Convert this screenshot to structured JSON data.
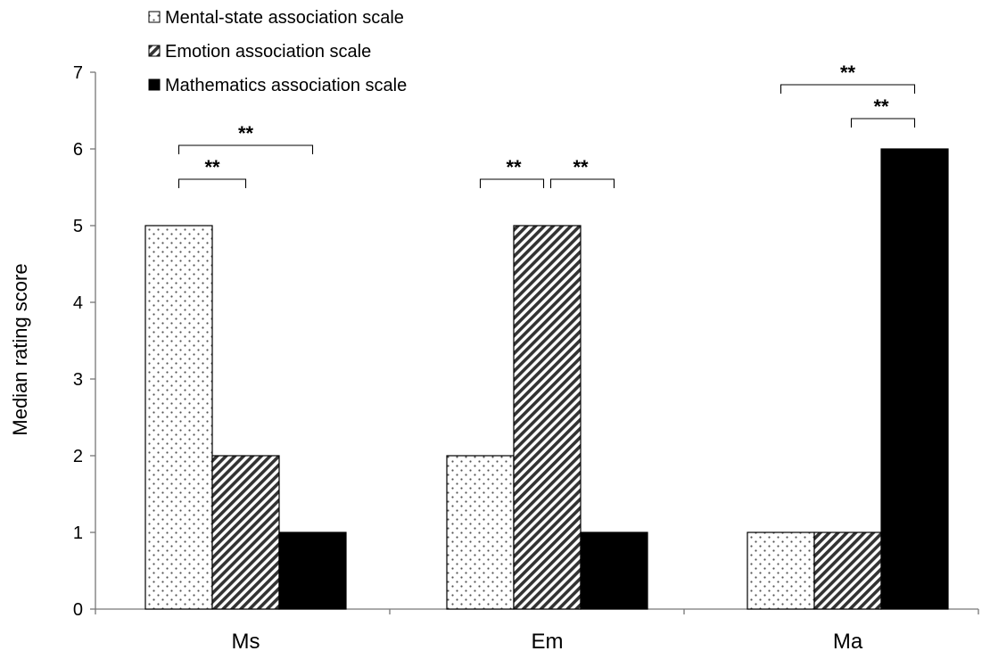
{
  "chart_data": {
    "type": "bar",
    "categories": [
      "Ms",
      "Em",
      "Ma"
    ],
    "series": [
      {
        "name": "Mental-state association scale",
        "values": [
          5,
          2,
          1
        ],
        "pattern": "dots"
      },
      {
        "name": "Emotion association scale",
        "values": [
          2,
          5,
          1
        ],
        "pattern": "diagonal-stripes"
      },
      {
        "name": "Mathematics association scale",
        "values": [
          1,
          1,
          6
        ],
        "pattern": "solid-black"
      }
    ],
    "ylabel": "Median rating score",
    "xlabel": "",
    "ylim": [
      0,
      7
    ],
    "yticks": [
      0,
      1,
      2,
      3,
      4,
      5,
      6,
      7
    ],
    "grid": false,
    "legend_position": "top-left",
    "significance": [
      {
        "category": 0,
        "from_series": 0,
        "to_series": 1,
        "label": "**"
      },
      {
        "category": 0,
        "from_series": 0,
        "to_series": 2,
        "label": "**"
      },
      {
        "category": 1,
        "from_series": 0,
        "to_series": 1,
        "label": "**"
      },
      {
        "category": 1,
        "from_series": 1,
        "to_series": 2,
        "label": "**"
      },
      {
        "category": 2,
        "from_series": 1,
        "to_series": 2,
        "label": "**"
      },
      {
        "category": 2,
        "from_series": 0,
        "to_series": 2,
        "label": "**"
      }
    ]
  }
}
